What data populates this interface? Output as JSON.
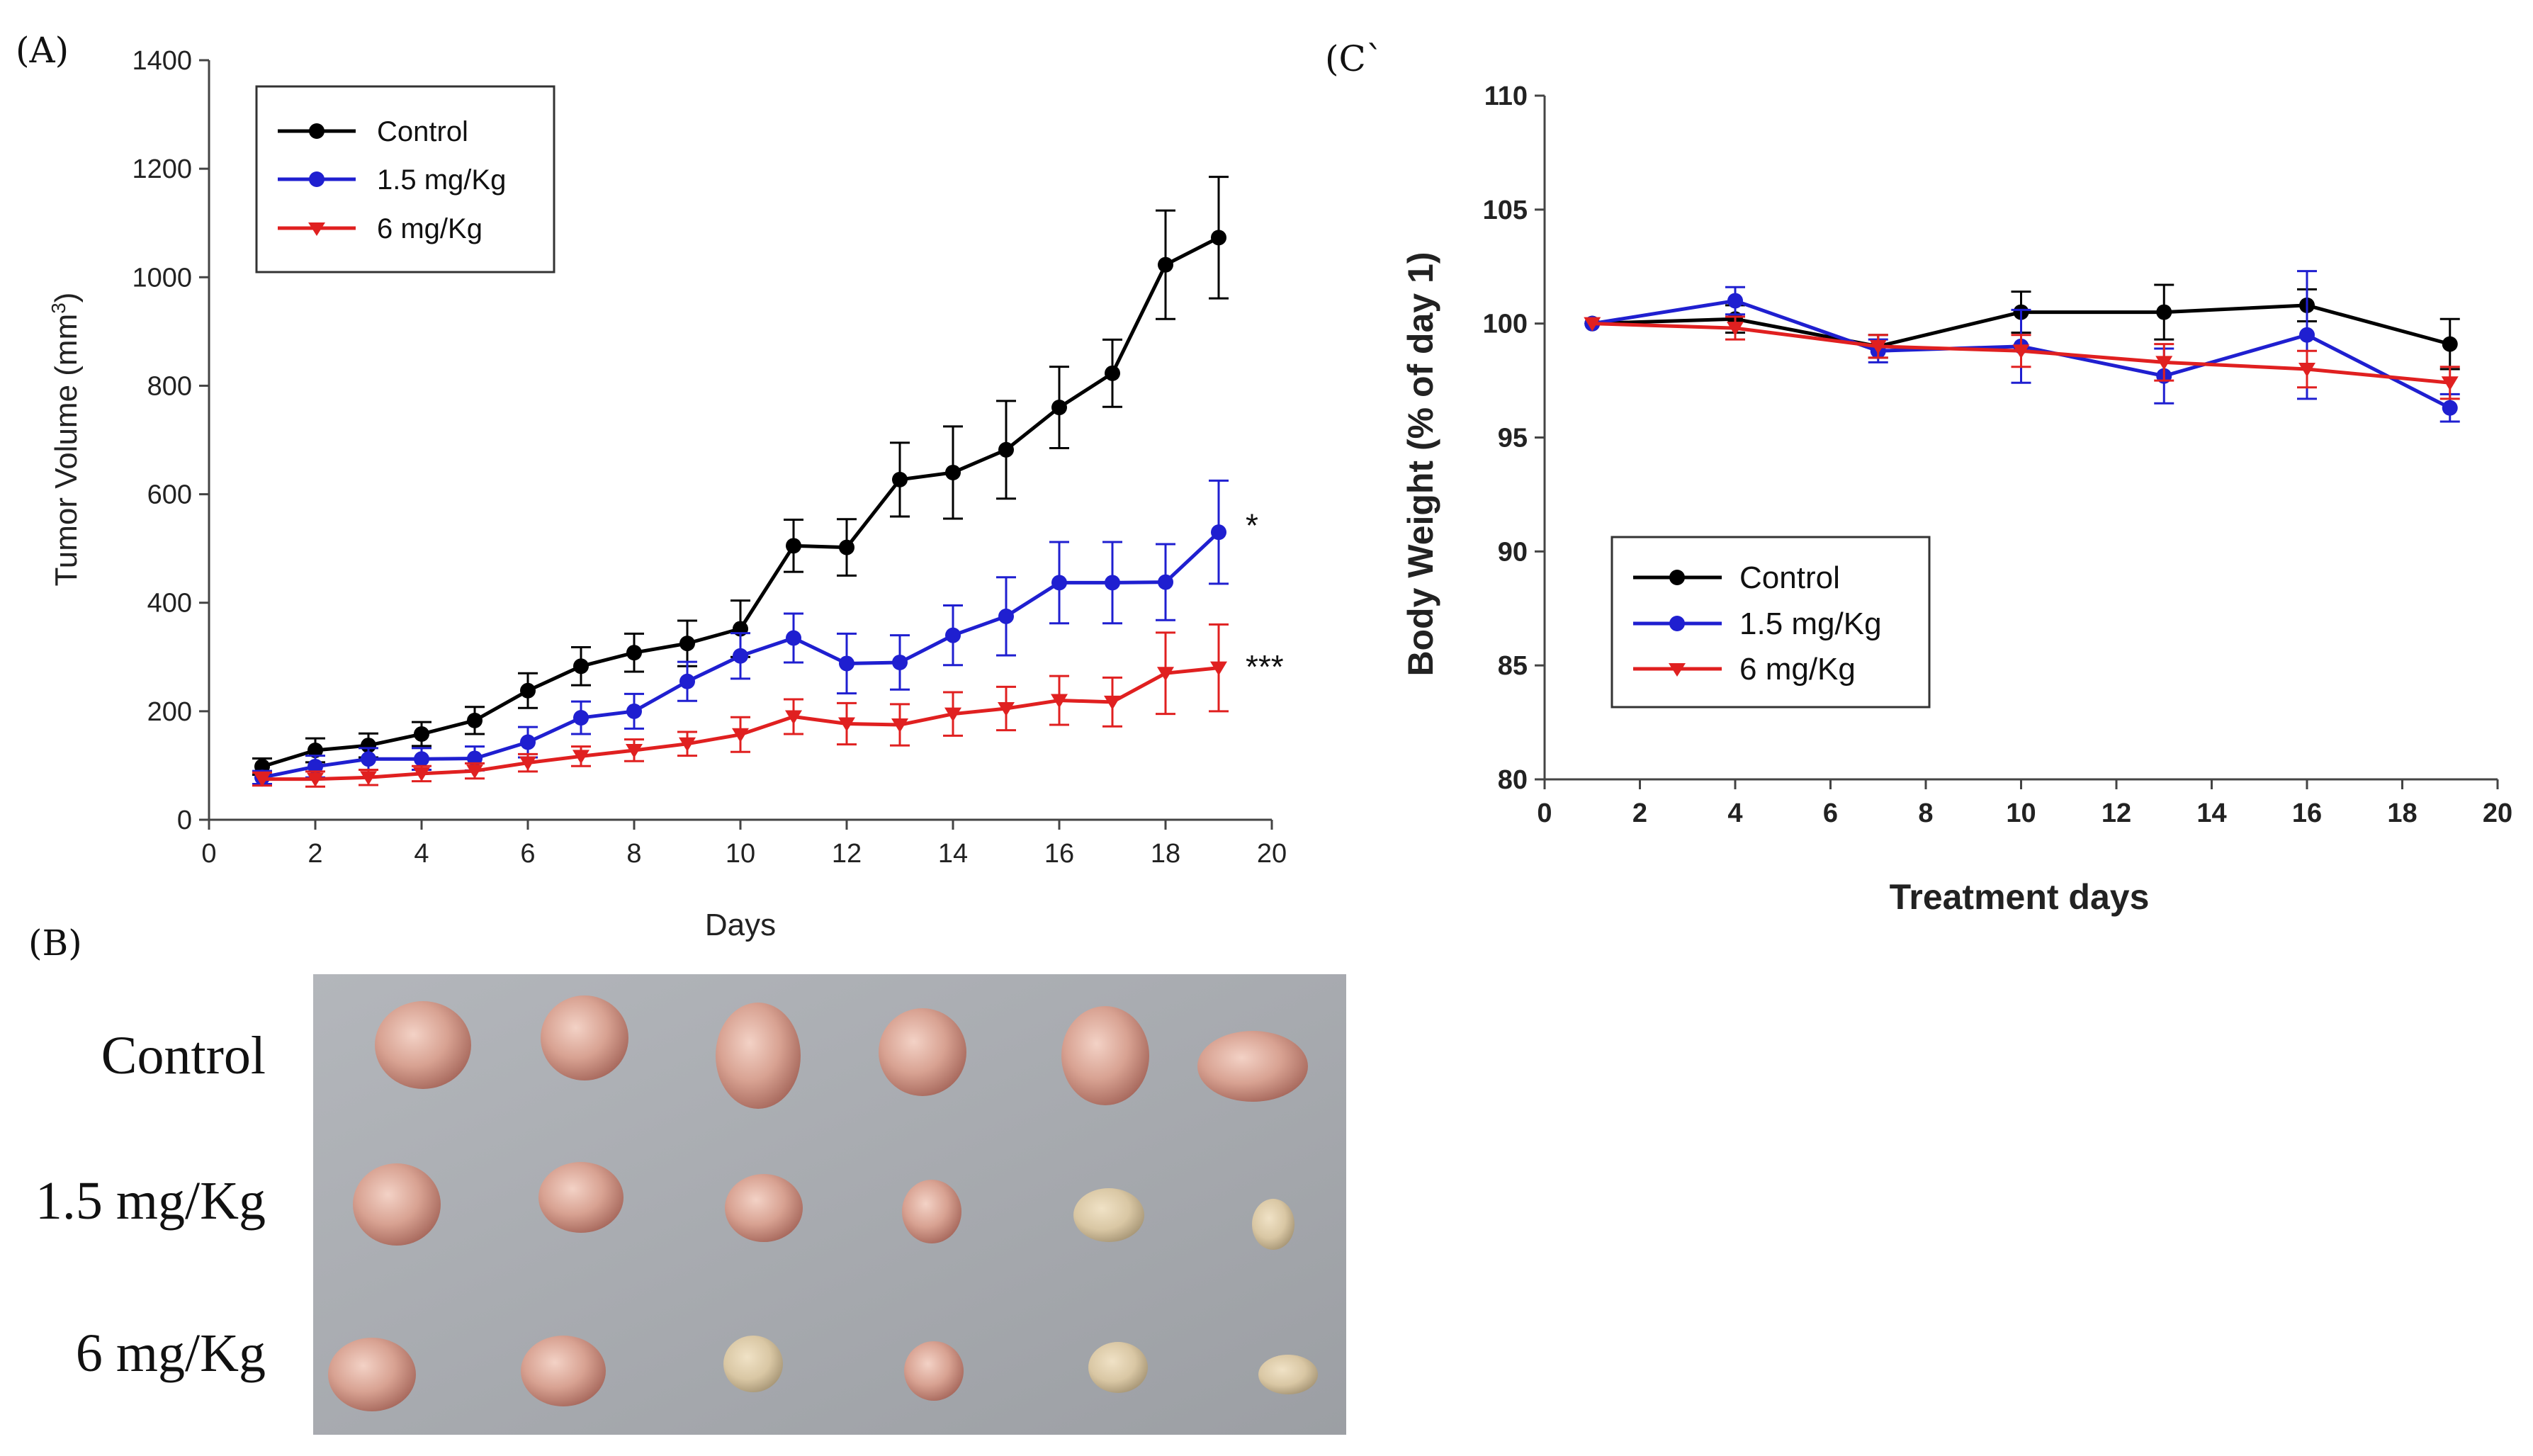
{
  "panels": {
    "a_label": "(A)",
    "b_label": "(B)",
    "c_label": "(C`"
  },
  "chart_data": [
    {
      "type": "line",
      "title": "",
      "xlabel": "Days",
      "ylabel": "Tumor Volume (mm3)",
      "ylabel_main": "Tumor Volume (mm",
      "ylabel_sup": "3",
      "ylabel_close": ")",
      "xlim": [
        0,
        20
      ],
      "ylim": [
        0,
        1400
      ],
      "xticks": [
        0,
        2,
        4,
        6,
        8,
        10,
        12,
        14,
        16,
        18,
        20
      ],
      "yticks": [
        0,
        200,
        400,
        600,
        800,
        1000,
        1200,
        1400
      ],
      "legend_position": "top-left",
      "annotations": [
        {
          "text": "*",
          "x": 19,
          "y": 545
        },
        {
          "text": "***",
          "x": 19,
          "y": 285
        }
      ],
      "series": [
        {
          "name": "Control",
          "color": "#000000",
          "marker": "circle",
          "x": [
            1,
            2,
            3,
            4,
            5,
            6,
            7,
            8,
            9,
            10,
            11,
            12,
            13,
            14,
            15,
            16,
            17,
            18,
            19
          ],
          "y": [
            98,
            128,
            137,
            158,
            183,
            238,
            283,
            308,
            325,
            352,
            505,
            502,
            627,
            640,
            682,
            760,
            823,
            1023,
            1073
          ],
          "err": [
            15,
            22,
            22,
            22,
            25,
            32,
            35,
            35,
            42,
            52,
            48,
            52,
            68,
            85,
            90,
            75,
            62,
            100,
            112
          ]
        },
        {
          "name": "1.5 mg/Kg",
          "color": "#1f1fd0",
          "marker": "circle",
          "x": [
            1,
            2,
            3,
            4,
            5,
            6,
            7,
            8,
            9,
            10,
            11,
            12,
            13,
            14,
            15,
            16,
            17,
            18,
            19
          ],
          "y": [
            78,
            98,
            112,
            112,
            113,
            143,
            188,
            200,
            255,
            302,
            335,
            288,
            290,
            340,
            375,
            437,
            437,
            438,
            530
          ],
          "err": [
            12,
            20,
            20,
            20,
            22,
            28,
            30,
            32,
            36,
            42,
            45,
            55,
            50,
            55,
            72,
            75,
            75,
            70,
            95
          ]
        },
        {
          "name": "6 mg/Kg",
          "color": "#e02020",
          "marker": "triangle-down",
          "x": [
            1,
            2,
            3,
            4,
            5,
            6,
            7,
            8,
            9,
            10,
            11,
            12,
            13,
            14,
            15,
            16,
            17,
            18,
            19
          ],
          "y": [
            75,
            75,
            78,
            85,
            90,
            105,
            117,
            128,
            140,
            157,
            190,
            177,
            175,
            195,
            205,
            220,
            217,
            270,
            280
          ],
          "err": [
            12,
            14,
            14,
            14,
            14,
            16,
            18,
            20,
            22,
            32,
            32,
            38,
            38,
            40,
            40,
            45,
            45,
            75,
            80
          ]
        }
      ]
    },
    {
      "type": "line",
      "title": "",
      "xlabel": "Treatment days",
      "ylabel": "Body Weight (% of day 1)",
      "xlim": [
        0,
        20
      ],
      "ylim": [
        80,
        110
      ],
      "xticks": [
        0,
        2,
        4,
        6,
        8,
        10,
        12,
        14,
        16,
        18,
        20
      ],
      "yticks": [
        80,
        85,
        90,
        95,
        100,
        105,
        110
      ],
      "legend_position": "lower-left",
      "series": [
        {
          "name": "Control",
          "color": "#000000",
          "marker": "circle",
          "x": [
            1,
            4,
            7,
            10,
            13,
            16,
            19
          ],
          "y": [
            100,
            100.2,
            99,
            100.5,
            100.5,
            100.8,
            99.1
          ],
          "err": [
            0,
            0.6,
            0.5,
            0.9,
            1.2,
            0.7,
            1.1
          ]
        },
        {
          "name": "1.5 mg/Kg",
          "color": "#1f1fd0",
          "marker": "circle",
          "x": [
            1,
            4,
            7,
            10,
            13,
            16,
            19
          ],
          "y": [
            100,
            101,
            98.8,
            99,
            97.7,
            99.5,
            96.3
          ],
          "err": [
            0,
            0.6,
            0.5,
            1.6,
            1.2,
            2.8,
            0.6
          ]
        },
        {
          "name": "6 mg/Kg",
          "color": "#e02020",
          "marker": "triangle-down",
          "x": [
            1,
            4,
            7,
            10,
            13,
            16,
            19
          ],
          "y": [
            100,
            99.8,
            99,
            98.8,
            98.3,
            98,
            97.4
          ],
          "err": [
            0,
            0.5,
            0.5,
            0.7,
            0.8,
            0.8,
            0.7
          ]
        }
      ]
    }
  ],
  "photo": {
    "rows": [
      {
        "label": "Control",
        "count": 6
      },
      {
        "label": "1.5 mg/Kg",
        "count": 6
      },
      {
        "label": "6 mg/Kg",
        "count": 6
      }
    ],
    "background_color": "#a9acb1",
    "tumor_color": "#d49a8e"
  }
}
